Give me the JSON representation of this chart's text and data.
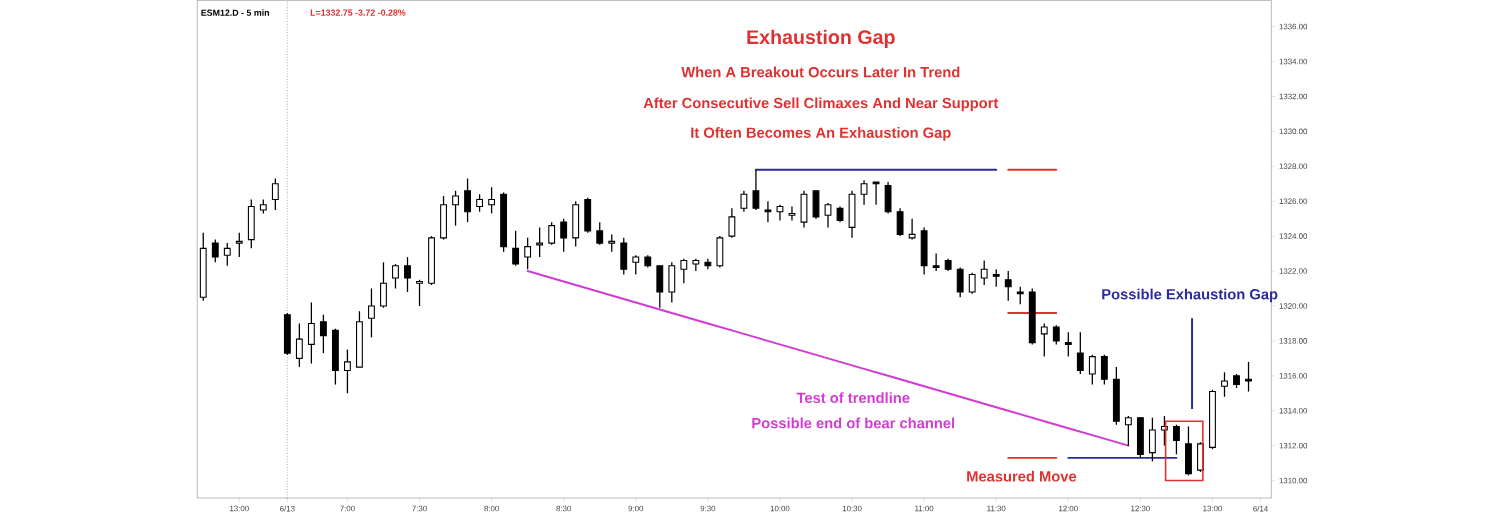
{
  "chart_data": {
    "type": "candlestick",
    "title": "Exhaustion Gap",
    "subtitle": "When A Breakout Occurs Later In Trend",
    "annotations": [
      "ESM12.D - 5 min",
      "L=1332.75 -3.72 -0.28%",
      "After Consecutive Sell Climaxes And Near Support",
      "It Often Becomes An Exhaustion Gap",
      "Possible Exhaustion Gap",
      "Test of trendline",
      "Possible end of bear channel",
      "Measured Move"
    ],
    "categories": [
      null,
      null,
      null,
      "13:00",
      null,
      null,
      null,
      "6/13",
      null,
      null,
      null,
      null,
      "7:00",
      null,
      null,
      null,
      null,
      null,
      "7:30",
      null,
      null,
      null,
      null,
      null,
      "8:00",
      null,
      null,
      null,
      null,
      null,
      "8:30",
      null,
      null,
      null,
      null,
      null,
      "9:00",
      null,
      null,
      null,
      null,
      null,
      "9:30",
      null,
      null,
      null,
      null,
      null,
      "10:00",
      null,
      null,
      null,
      null,
      null,
      "10:30",
      null,
      null,
      null,
      null,
      null,
      "11:00",
      null,
      null,
      null,
      null,
      null,
      "11:30",
      null,
      null,
      null,
      null,
      null,
      "12:00",
      null,
      null,
      null,
      null,
      null,
      "12:30",
      null,
      null,
      null,
      null,
      null,
      "13:00",
      null,
      null,
      null,
      "6/14"
    ],
    "ohlc": [
      [
        1320.5,
        1324.2,
        1320.3,
        1323.3
      ],
      [
        1323.6,
        1323.8,
        1322.5,
        1322.8
      ],
      [
        1322.9,
        1323.6,
        1322.3,
        1323.3
      ],
      [
        1323.6,
        1324.2,
        1322.8,
        1323.7
      ],
      [
        1323.8,
        1326.1,
        1323.3,
        1325.7
      ],
      [
        1325.5,
        1326.1,
        1325.3,
        1325.8
      ],
      [
        1326.1,
        1327.3,
        1325.5,
        1327.0
      ],
      [
        1319.5,
        1319.6,
        1317.2,
        1317.3
      ],
      [
        1317.0,
        1319.0,
        1316.5,
        1318.1
      ],
      [
        1317.8,
        1320.2,
        1316.7,
        1319.0
      ],
      [
        1319.1,
        1319.5,
        1317.3,
        1318.3
      ],
      [
        1318.6,
        1318.7,
        1315.5,
        1316.3
      ],
      [
        1316.3,
        1317.5,
        1315.0,
        1316.8
      ],
      [
        1316.5,
        1319.7,
        1316.5,
        1319.1
      ],
      [
        1319.3,
        1321.0,
        1318.2,
        1320.0
      ],
      [
        1320.0,
        1322.5,
        1319.9,
        1321.3
      ],
      [
        1321.6,
        1322.4,
        1321.0,
        1322.3
      ],
      [
        1322.3,
        1322.8,
        1320.8,
        1321.6
      ],
      [
        1321.3,
        1321.5,
        1320.0,
        1321.4
      ],
      [
        1321.3,
        1324.0,
        1321.2,
        1323.9
      ],
      [
        1323.9,
        1326.3,
        1323.8,
        1325.8
      ],
      [
        1325.8,
        1326.6,
        1324.6,
        1326.3
      ],
      [
        1326.6,
        1327.3,
        1324.8,
        1325.4
      ],
      [
        1325.7,
        1326.4,
        1325.4,
        1326.1
      ],
      [
        1325.8,
        1326.8,
        1325.3,
        1326.1
      ],
      [
        1326.4,
        1326.5,
        1323.1,
        1323.4
      ],
      [
        1323.3,
        1324.3,
        1322.3,
        1322.4
      ],
      [
        1322.8,
        1323.9,
        1322.1,
        1323.4
      ],
      [
        1323.5,
        1324.5,
        1322.8,
        1323.6
      ],
      [
        1323.6,
        1324.8,
        1323.5,
        1324.6
      ],
      [
        1324.8,
        1325.0,
        1323.1,
        1323.9
      ],
      [
        1323.9,
        1326.0,
        1323.4,
        1325.8
      ],
      [
        1326.1,
        1326.2,
        1324.2,
        1324.3
      ],
      [
        1324.3,
        1324.8,
        1323.5,
        1323.6
      ],
      [
        1323.6,
        1324.1,
        1323.1,
        1323.7
      ],
      [
        1323.6,
        1323.9,
        1321.8,
        1322.1
      ],
      [
        1322.5,
        1322.9,
        1321.8,
        1322.8
      ],
      [
        1322.8,
        1322.9,
        1322.2,
        1322.3
      ],
      [
        1322.3,
        1322.3,
        1319.9,
        1320.8
      ],
      [
        1320.8,
        1322.5,
        1320.2,
        1322.3
      ],
      [
        1322.1,
        1322.7,
        1321.3,
        1322.6
      ],
      [
        1322.4,
        1322.7,
        1322.0,
        1322.6
      ],
      [
        1322.5,
        1322.7,
        1322.1,
        1322.3
      ],
      [
        1322.3,
        1324.0,
        1322.2,
        1323.9
      ],
      [
        1324.0,
        1325.6,
        1323.9,
        1325.1
      ],
      [
        1325.6,
        1326.6,
        1325.4,
        1326.4
      ],
      [
        1326.6,
        1327.8,
        1325.5,
        1325.6
      ],
      [
        1325.5,
        1326.0,
        1324.8,
        1325.4
      ],
      [
        1325.4,
        1325.8,
        1324.9,
        1325.7
      ],
      [
        1325.2,
        1325.7,
        1324.9,
        1325.3
      ],
      [
        1324.8,
        1326.6,
        1324.5,
        1326.4
      ],
      [
        1326.6,
        1326.6,
        1325.0,
        1325.1
      ],
      [
        1325.2,
        1325.9,
        1324.5,
        1325.8
      ],
      [
        1325.6,
        1325.7,
        1324.8,
        1324.9
      ],
      [
        1324.5,
        1326.6,
        1323.9,
        1326.4
      ],
      [
        1326.4,
        1327.2,
        1325.8,
        1327.0
      ],
      [
        1327.1,
        1327.1,
        1325.8,
        1327.0
      ],
      [
        1326.9,
        1327.1,
        1325.3,
        1325.4
      ],
      [
        1325.4,
        1325.6,
        1324.0,
        1324.1
      ],
      [
        1323.9,
        1325.0,
        1323.8,
        1324.1
      ],
      [
        1324.3,
        1324.5,
        1321.8,
        1322.3
      ],
      [
        1322.3,
        1323.0,
        1322.0,
        1322.2
      ],
      [
        1322.6,
        1322.7,
        1322.0,
        1322.1
      ],
      [
        1322.1,
        1322.2,
        1320.5,
        1320.8
      ],
      [
        1320.8,
        1321.9,
        1320.7,
        1321.8
      ],
      [
        1321.6,
        1322.6,
        1321.2,
        1322.1
      ],
      [
        1321.8,
        1322.1,
        1321.1,
        1321.7
      ],
      [
        1321.5,
        1322.0,
        1320.3,
        1321.1
      ],
      [
        1320.8,
        1321.1,
        1320.1,
        1320.7
      ],
      [
        1320.8,
        1321.0,
        1317.8,
        1317.9
      ],
      [
        1318.4,
        1319.0,
        1317.1,
        1318.8
      ],
      [
        1318.8,
        1318.9,
        1317.8,
        1318.0
      ],
      [
        1317.9,
        1318.5,
        1317.1,
        1317.8
      ],
      [
        1317.3,
        1318.5,
        1316.1,
        1316.3
      ],
      [
        1316.1,
        1317.2,
        1315.5,
        1317.1
      ],
      [
        1317.1,
        1317.2,
        1315.5,
        1315.8
      ],
      [
        1315.8,
        1316.5,
        1313.2,
        1313.4
      ],
      [
        1313.2,
        1313.7,
        1312.0,
        1313.6
      ],
      [
        1313.6,
        1313.6,
        1311.3,
        1311.5
      ],
      [
        1311.6,
        1313.6,
        1311.1,
        1312.9
      ],
      [
        1312.9,
        1313.7,
        1312.0,
        1313.1
      ],
      [
        1313.1,
        1313.2,
        1311.5,
        1312.3
      ],
      [
        1312.1,
        1313.1,
        1310.3,
        1310.4
      ],
      [
        1310.6,
        1312.2,
        1310.5,
        1312.1
      ],
      [
        1311.9,
        1315.2,
        1311.8,
        1315.1
      ],
      [
        1315.4,
        1316.2,
        1314.8,
        1315.7
      ],
      [
        1316.0,
        1316.1,
        1315.3,
        1315.5
      ],
      [
        1315.8,
        1316.8,
        1315.1,
        1315.7
      ],
      null
    ],
    "series": [
      {
        "type": "line",
        "color": "#d23bd2",
        "values": [
          null,
          null,
          null,
          null,
          null,
          null,
          null,
          null,
          null,
          null,
          null,
          null,
          null,
          null,
          null,
          null,
          null,
          null,
          null,
          null,
          null,
          null,
          null,
          null,
          null,
          null,
          null,
          1322.0,
          1321.8,
          1321.6,
          1321.4,
          1321.2,
          1321.0,
          1320.8,
          1320.6,
          1320.4,
          1320.2,
          1320.0,
          1319.8,
          1319.6,
          1319.4,
          1319.2,
          1319.0,
          1318.8,
          1318.6,
          1318.4,
          1318.2,
          1318.0,
          1317.8,
          1317.6,
          1317.4,
          1317.2,
          1317.0,
          1316.8,
          1316.6,
          1316.4,
          1316.2,
          1316.0,
          1315.8,
          1315.6,
          1315.4,
          1315.2,
          1315.0,
          1314.8,
          1314.6,
          1314.4,
          1314.2,
          1314.0,
          1313.8,
          1313.6,
          1313.4,
          1313.2,
          1313.0,
          1312.8,
          1312.6,
          1312.4,
          1312.2,
          1312.0,
          null,
          null,
          null,
          null,
          null,
          null,
          null,
          null,
          null,
          null,
          null
        ]
      },
      {
        "type": "line",
        "color": "#2b2b9e",
        "values": [
          null,
          null,
          null,
          null,
          null,
          null,
          null,
          null,
          null,
          null,
          null,
          null,
          null,
          null,
          null,
          null,
          null,
          null,
          null,
          null,
          null,
          null,
          null,
          null,
          null,
          null,
          null,
          null,
          null,
          null,
          null,
          null,
          null,
          null,
          null,
          null,
          null,
          null,
          null,
          null,
          null,
          null,
          null,
          null,
          null,
          null,
          1327.8,
          1327.8,
          1327.8,
          1327.8,
          1327.8,
          1327.8,
          1327.8,
          1327.8,
          1327.8,
          1327.8,
          1327.8,
          1327.8,
          1327.8,
          1327.8,
          1327.8,
          1327.8,
          1327.8,
          1327.8,
          1327.8,
          1327.8,
          1327.8,
          null,
          null,
          null,
          null,
          null,
          null,
          null,
          null,
          null,
          null,
          null,
          null,
          null,
          null,
          null,
          null,
          null,
          null,
          null,
          null,
          null,
          null
        ]
      },
      {
        "type": "line",
        "color": "#e03030",
        "values": [
          null,
          null,
          null,
          null,
          null,
          null,
          null,
          null,
          null,
          null,
          null,
          null,
          null,
          null,
          null,
          null,
          null,
          null,
          null,
          null,
          null,
          null,
          null,
          null,
          null,
          null,
          null,
          null,
          null,
          null,
          null,
          null,
          null,
          null,
          null,
          null,
          null,
          null,
          null,
          null,
          null,
          null,
          null,
          null,
          null,
          null,
          null,
          null,
          null,
          null,
          null,
          null,
          null,
          null,
          null,
          null,
          null,
          null,
          null,
          null,
          null,
          null,
          null,
          null,
          null,
          null,
          null,
          1327.8,
          1327.8,
          1327.8,
          1327.8,
          1327.8,
          null,
          null,
          null,
          null,
          null,
          null,
          null,
          null,
          null,
          null,
          null,
          null,
          null,
          null,
          null,
          null,
          null
        ]
      },
      {
        "type": "line",
        "color": "#e03030",
        "values": [
          null,
          null,
          null,
          null,
          null,
          null,
          null,
          null,
          null,
          null,
          null,
          null,
          null,
          null,
          null,
          null,
          null,
          null,
          null,
          null,
          null,
          null,
          null,
          null,
          null,
          null,
          null,
          null,
          null,
          null,
          null,
          null,
          null,
          null,
          null,
          null,
          null,
          null,
          null,
          null,
          null,
          null,
          null,
          null,
          null,
          null,
          null,
          null,
          null,
          null,
          null,
          null,
          null,
          null,
          null,
          null,
          null,
          null,
          null,
          null,
          null,
          null,
          null,
          null,
          null,
          null,
          null,
          1319.6,
          1319.6,
          1319.6,
          1319.6,
          1319.6,
          null,
          null,
          null,
          null,
          null,
          null,
          null,
          null,
          null,
          null,
          null,
          null,
          null,
          null,
          null,
          null,
          null
        ]
      },
      {
        "type": "line",
        "color": "#e03030",
        "values": [
          null,
          null,
          null,
          null,
          null,
          null,
          null,
          null,
          null,
          null,
          null,
          null,
          null,
          null,
          null,
          null,
          null,
          null,
          null,
          null,
          null,
          null,
          null,
          null,
          null,
          null,
          null,
          null,
          null,
          null,
          null,
          null,
          null,
          null,
          null,
          null,
          null,
          null,
          null,
          null,
          null,
          null,
          null,
          null,
          null,
          null,
          null,
          null,
          null,
          null,
          null,
          null,
          null,
          null,
          null,
          null,
          null,
          null,
          null,
          null,
          null,
          null,
          null,
          null,
          null,
          null,
          null,
          1311.3,
          1311.3,
          1311.3,
          1311.3,
          1311.3,
          null,
          null,
          null,
          null,
          null,
          null,
          null,
          null,
          null,
          null,
          null,
          null,
          null,
          null,
          null,
          null,
          null
        ]
      },
      {
        "type": "line",
        "color": "#2b2b9e",
        "values": [
          null,
          null,
          null,
          null,
          null,
          null,
          null,
          null,
          null,
          null,
          null,
          null,
          null,
          null,
          null,
          null,
          null,
          null,
          null,
          null,
          null,
          null,
          null,
          null,
          null,
          null,
          null,
          null,
          null,
          null,
          null,
          null,
          null,
          null,
          null,
          null,
          null,
          null,
          null,
          null,
          null,
          null,
          null,
          null,
          null,
          null,
          null,
          null,
          null,
          null,
          null,
          null,
          null,
          null,
          null,
          null,
          null,
          null,
          null,
          null,
          null,
          null,
          null,
          null,
          null,
          null,
          null,
          null,
          null,
          null,
          null,
          null,
          1311.3,
          1311.3,
          1311.3,
          1311.3,
          1311.3,
          1311.3,
          1311.3,
          1311.3,
          1311.3,
          1311.3,
          null,
          null,
          null,
          null,
          null,
          null,
          null
        ]
      }
    ],
    "ref_lines": [
      {
        "axis": "x",
        "value": "6/13",
        "color": "#808080",
        "line_style": "dotted"
      }
    ],
    "ylim": [
      1309,
      1337.5
    ],
    "yticks": [
      {
        "value": 1310,
        "label": "1310.00"
      },
      {
        "value": 1312,
        "label": "1312.00"
      },
      {
        "value": 1314,
        "label": "1314.00"
      },
      {
        "value": 1316,
        "label": "1316.00"
      },
      {
        "value": 1318,
        "label": "1318.00"
      },
      {
        "value": 1320,
        "label": "1320.00"
      },
      {
        "value": 1322,
        "label": "1322.00"
      },
      {
        "value": 1324,
        "label": "1324.00"
      },
      {
        "value": 1326,
        "label": "1326.00"
      },
      {
        "value": 1328,
        "label": "1328.00"
      },
      {
        "value": 1330,
        "label": "1330.00"
      },
      {
        "value": 1332,
        "label": "1332.00"
      },
      {
        "value": 1334,
        "label": "1334.00"
      },
      {
        "value": 1336,
        "label": "1336.00"
      }
    ],
    "tick_labels": "xy"
  }
}
